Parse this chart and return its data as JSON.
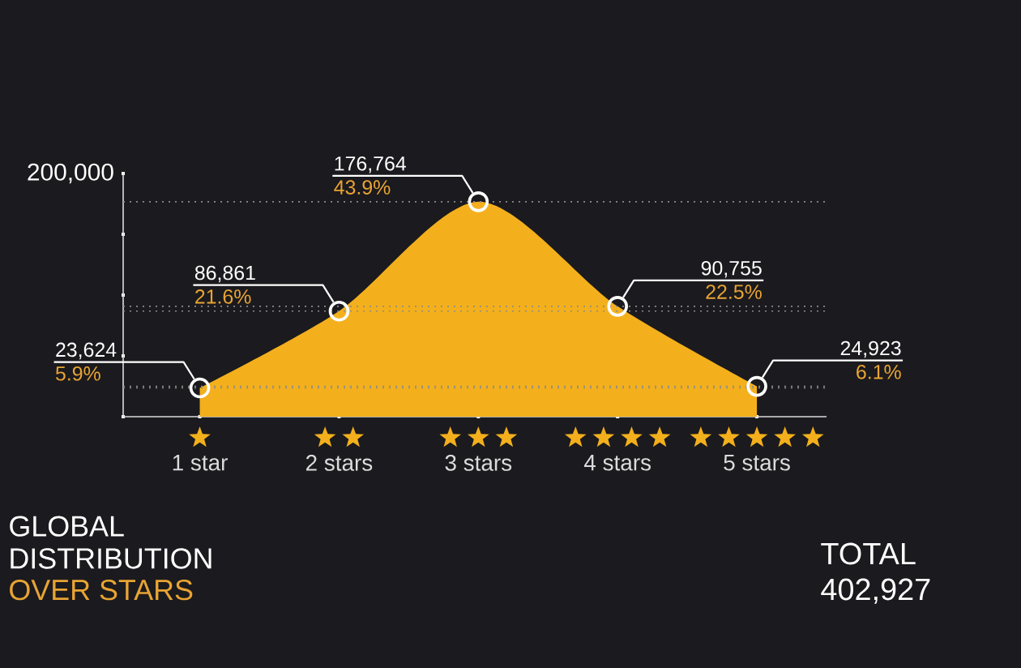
{
  "chart_data": {
    "type": "area",
    "title": "GLOBAL DISTRIBUTION",
    "subtitle": "OVER STARS",
    "categories": [
      "1 star",
      "2 stars",
      "3 stars",
      "4 stars",
      "5 stars"
    ],
    "values": [
      23624,
      86861,
      176764,
      90755,
      24923
    ],
    "value_labels": [
      "23,624",
      "86,861",
      "176,764",
      "90,755",
      "24,923"
    ],
    "color": "#f3b01c",
    "marker": "circle",
    "ylim": [
      0,
      200000
    ],
    "yticks": [
      {
        "value": 0,
        "label": null
      },
      {
        "value": 50000,
        "label": null
      },
      {
        "value": 100000,
        "label": null
      },
      {
        "value": 150000,
        "label": null
      },
      {
        "value": 200000,
        "label": "200,000"
      }
    ],
    "ref_lines": [
      {
        "axis": "y",
        "value": 23624,
        "color": "#8c8c8c",
        "line_style": "dotted"
      },
      {
        "axis": "y",
        "value": 86861,
        "color": "#8c8c8c",
        "line_style": "dotted"
      },
      {
        "axis": "y",
        "value": 176764,
        "color": "#8c8c8c",
        "line_style": "dotted"
      },
      {
        "axis": "y",
        "value": 90755,
        "color": "#8c8c8c",
        "line_style": "dotted"
      },
      {
        "axis": "y",
        "value": 24923,
        "color": "#8c8c8c",
        "line_style": "dotted"
      }
    ],
    "annotations": [
      {
        "text": "5.9%",
        "x": "1 star",
        "y": 23624
      },
      {
        "text": "21.6%",
        "x": "2 stars",
        "y": 86861
      },
      {
        "text": "43.9%",
        "x": "3 stars",
        "y": 176764
      },
      {
        "text": "22.5%",
        "x": "4 stars",
        "y": 90755
      },
      {
        "text": "6.1%",
        "x": "5 stars",
        "y": 24923
      },
      "TOTAL",
      "402,927"
    ]
  }
}
